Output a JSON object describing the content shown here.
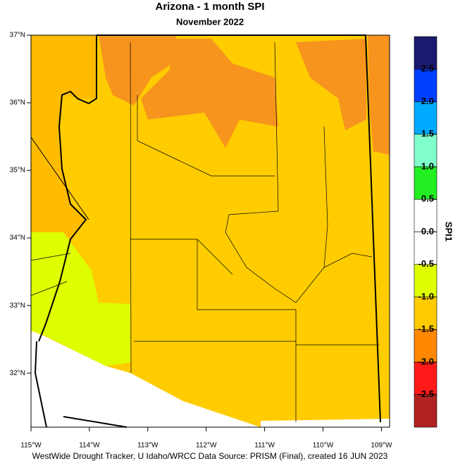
{
  "header": {
    "title": "Arizona - 1 month SPI",
    "subtitle": "November 2022"
  },
  "map": {
    "xlim": [
      -115,
      -108.86
    ],
    "ylim": [
      31.2,
      37.0
    ],
    "xticks": [
      {
        "value": -115,
        "label": "115°W"
      },
      {
        "value": -114,
        "label": "114°W"
      },
      {
        "value": -113,
        "label": "113°W"
      },
      {
        "value": -112,
        "label": "112°W"
      },
      {
        "value": -111,
        "label": "111°W"
      },
      {
        "value": -110,
        "label": "110°W"
      },
      {
        "value": -109,
        "label": "109°W"
      }
    ],
    "yticks": [
      {
        "value": 32,
        "label": "32°N"
      },
      {
        "value": 33,
        "label": "33°N"
      },
      {
        "value": 34,
        "label": "34°N"
      },
      {
        "value": 35,
        "label": "35°N"
      },
      {
        "value": 36,
        "label": "36°N"
      },
      {
        "value": 37,
        "label": "37°N"
      }
    ]
  },
  "colorbar": {
    "title": "SPI1",
    "ticks": [
      2.5,
      {
        "value": 2,
        "label": "2.0"
      },
      1.5,
      {
        "value": 1,
        "label": "1.0"
      },
      0.5,
      {
        "value": 0,
        "label": "0.0"
      },
      -0.5,
      {
        "value": -1,
        "label": "-1.0"
      },
      -1.5,
      {
        "value": -2,
        "label": "-2.0"
      },
      -2.5
    ],
    "colors": [
      "#1a1a6e",
      "#0040ff",
      "#00aaff",
      "#80ffcc",
      "#22ee22",
      "#ffffff",
      "#ffffff",
      "#ddff00",
      "#ffcc00",
      "#ff8800",
      "#ff1a1a",
      "#b22222"
    ]
  },
  "footer": "WestWide Drought Tracker, U Idaho/WRCC Data Source: PRISM (Final), created 16 JUN 2023"
}
